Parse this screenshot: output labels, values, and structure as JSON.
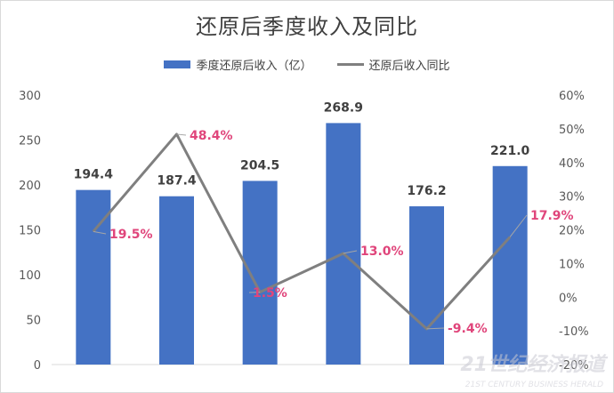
{
  "chart_data": {
    "type": "bar",
    "title": "还原后季度收入及同比",
    "categories": [
      "",
      "",
      "",
      "",
      "",
      ""
    ],
    "series": [
      {
        "name": "季度还原后收入（亿）",
        "type": "bar",
        "axis": "left",
        "values": [
          194.4,
          187.4,
          204.5,
          268.9,
          176.2,
          221.0
        ],
        "labels": [
          "194.4",
          "187.4",
          "204.5",
          "268.9",
          "176.2",
          "221.0"
        ]
      },
      {
        "name": "还原后收入同比",
        "type": "line",
        "axis": "right",
        "values": [
          19.5,
          48.4,
          1.5,
          13.0,
          -9.4,
          17.9
        ],
        "labels": [
          "19.5%",
          "48.4%",
          "1.5%",
          "13.0%",
          "-9.4%",
          "17.9%"
        ]
      }
    ],
    "y_left": {
      "min": 0,
      "max": 300,
      "ticks": [
        "0",
        "50",
        "100",
        "150",
        "200",
        "250",
        "300"
      ]
    },
    "y_right": {
      "min": -20,
      "max": 60,
      "ticks": [
        "-20%",
        "-10%",
        "0%",
        "10%",
        "20%",
        "30%",
        "40%",
        "50%",
        "60%"
      ]
    },
    "grid": false,
    "legend_position": "top",
    "colors": {
      "bar": "#4472C4",
      "line": "#7F7F7F",
      "line_label": "#E0457B",
      "bar_label": "#404040",
      "axis_text": "#595959"
    }
  },
  "watermark": {
    "main": "21世纪经济报道",
    "sub": "21ST CENTURY BUSINESS HERALD"
  }
}
